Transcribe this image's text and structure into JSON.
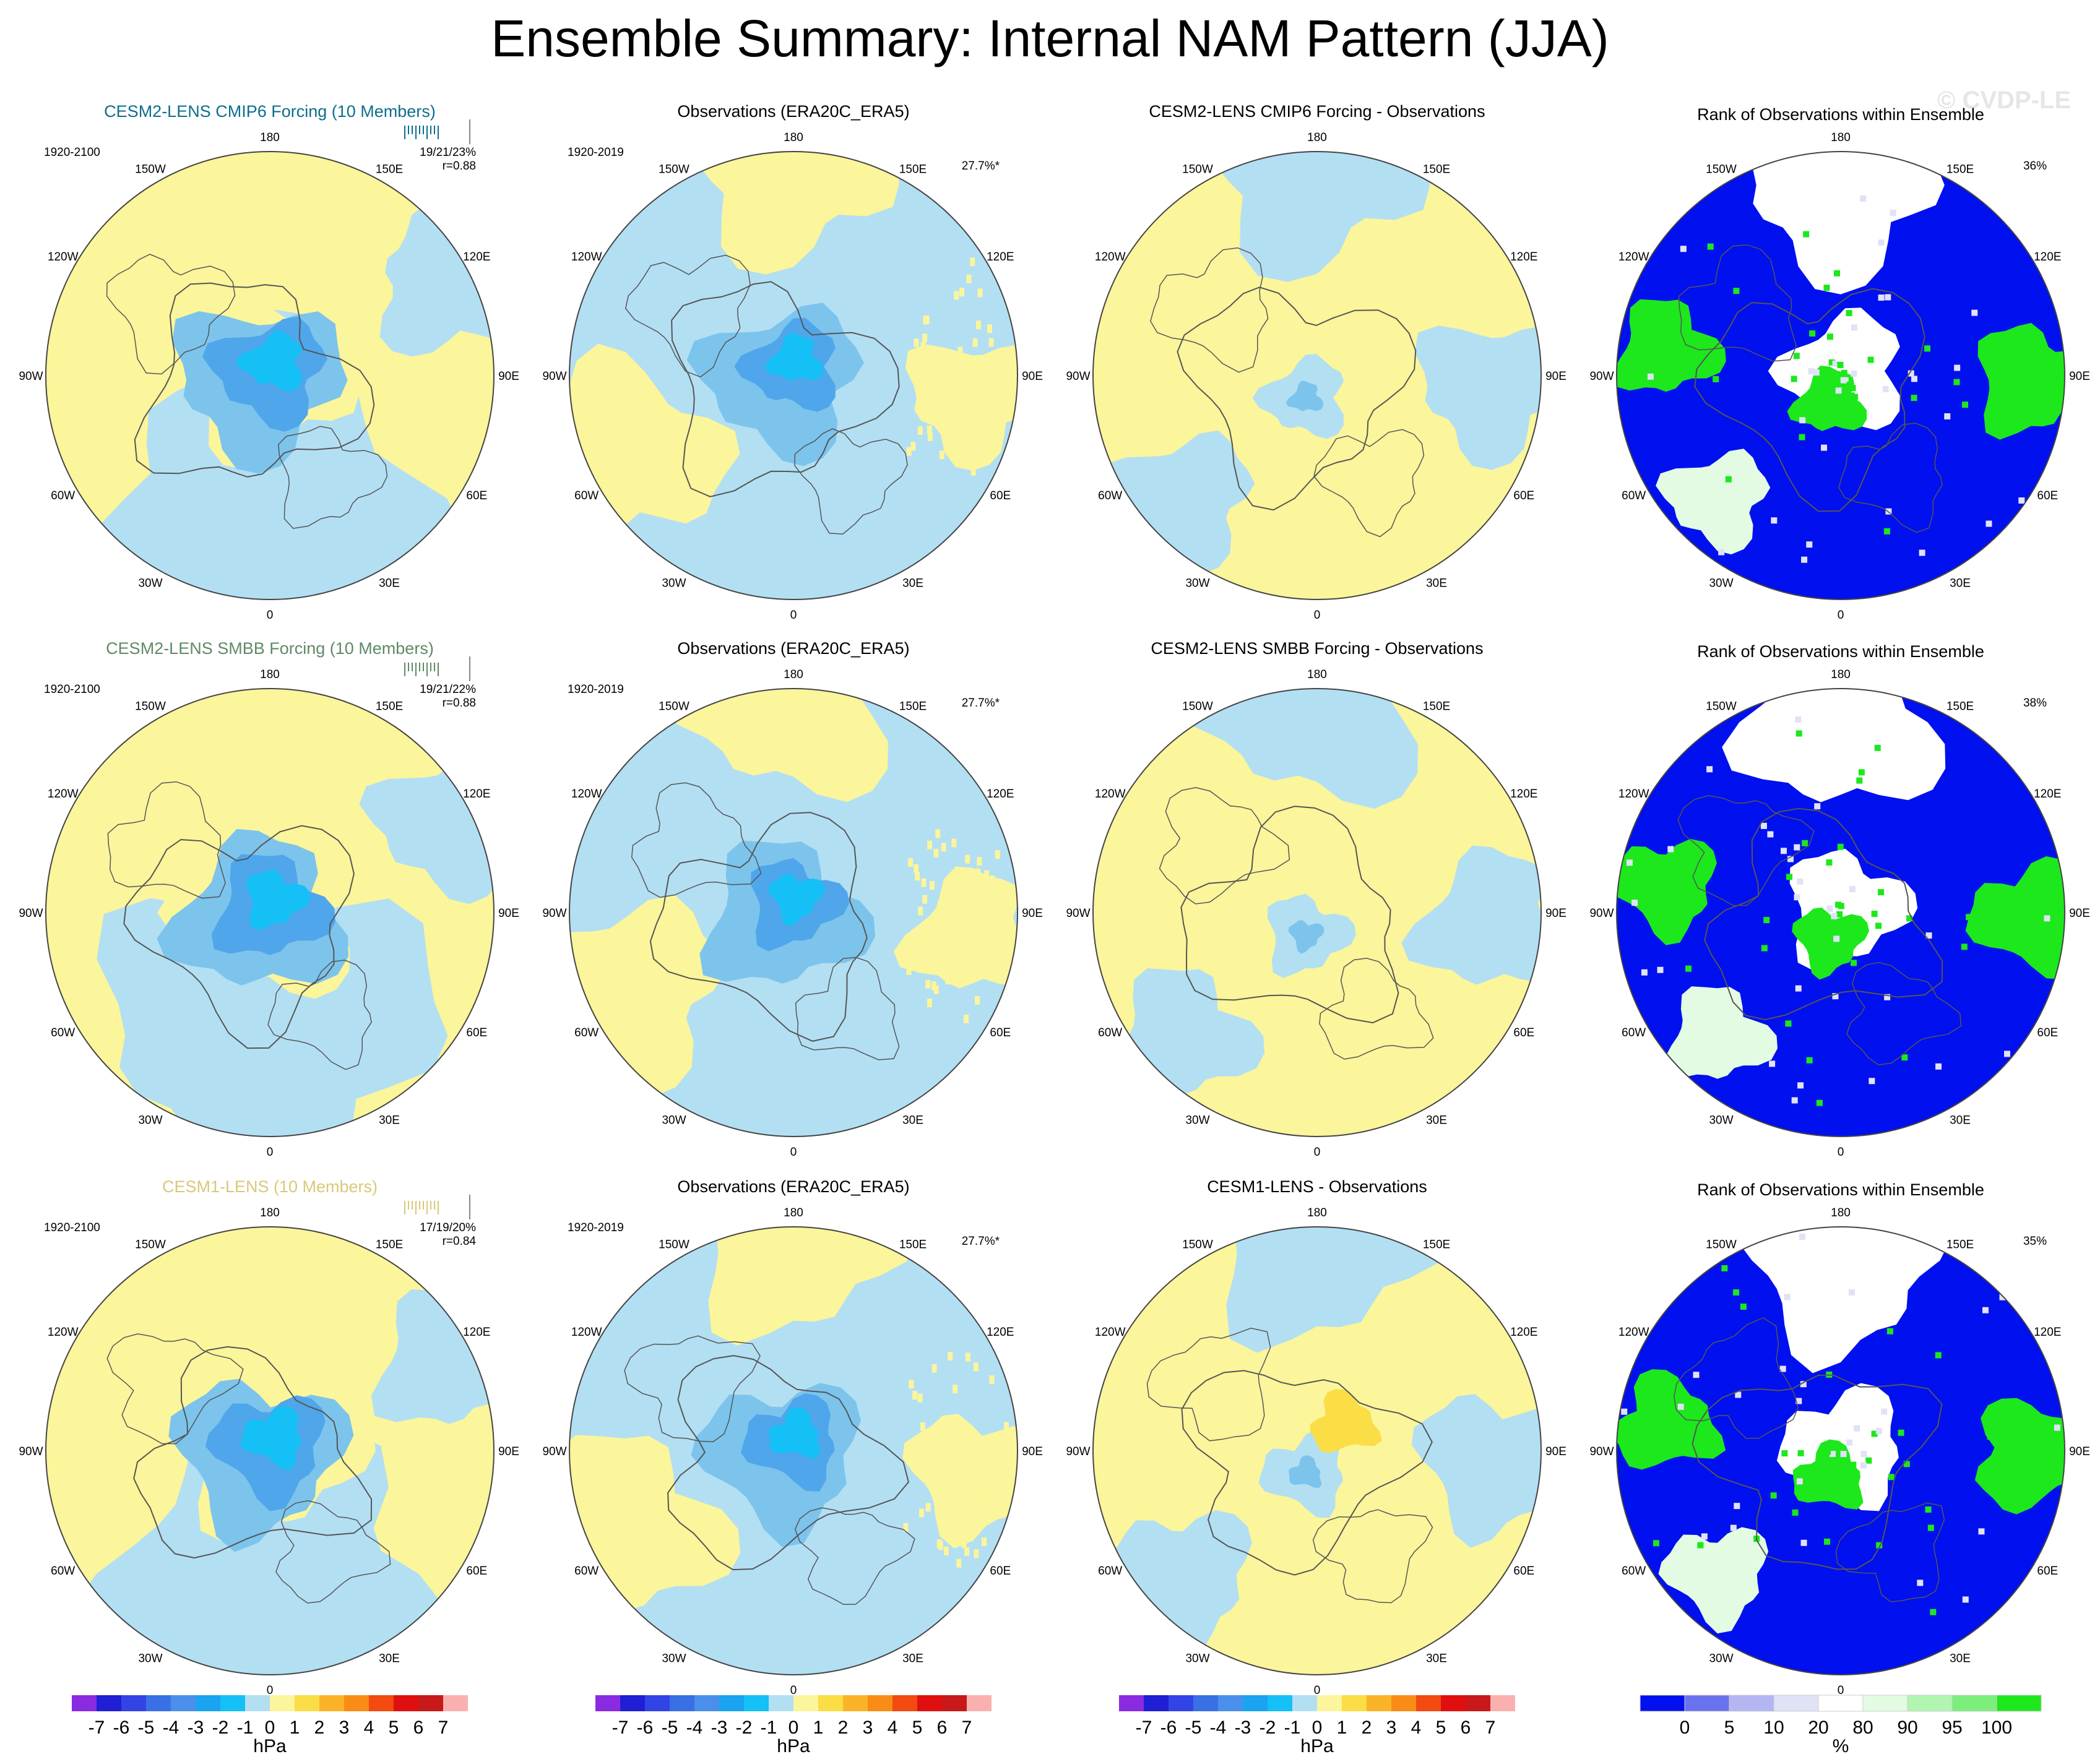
{
  "title": "Ensemble Summary: Internal NAM Pattern (JJA)",
  "watermark": "© CVDP-LE",
  "colors": {
    "land_outline": "#555555",
    "map_labels": "#000000",
    "model_colors": [
      "#0d6e8c",
      "#5f8a66",
      "#d9c87a"
    ]
  },
  "longitude_labels": [
    "180",
    "150E",
    "120E",
    "90E",
    "60E",
    "30E",
    "0",
    "30W",
    "60W",
    "90W",
    "120W",
    "150W"
  ],
  "chart_data": [
    {
      "type": "heatmap",
      "rows": [
        {
          "model_title": "CESM2-LENS CMIP6 Forcing (10 Members)",
          "period": "1920-2100",
          "stats_line": "19/21/23%",
          "corr": "r=0.88",
          "obs_title": "Observations (ERA20C_ERA5)",
          "obs_period": "1920-2019",
          "obs_pct": "27.7%*",
          "diff_title": "CESM2-LENS CMIP6 Forcing - Observations",
          "rank_title": "Rank of Observations within Ensemble",
          "rank_pct": "36%"
        },
        {
          "model_title": "CESM2-LENS SMBB Forcing (10 Members)",
          "period": "1920-2100",
          "stats_line": "19/21/22%",
          "corr": "r=0.88",
          "obs_title": "Observations (ERA20C_ERA5)",
          "obs_period": "1920-2019",
          "obs_pct": "27.7%*",
          "diff_title": "CESM2-LENS SMBB Forcing - Observations",
          "rank_title": "Rank of Observations within Ensemble",
          "rank_pct": "38%"
        },
        {
          "model_title": "CESM1-LENS (10 Members)",
          "period": "1920-2100",
          "stats_line": "17/19/20%",
          "corr": "r=0.84",
          "obs_title": "Observations (ERA20C_ERA5)",
          "obs_period": "1920-2019",
          "obs_pct": "27.7%*",
          "diff_title": "CESM1-LENS - Observations",
          "rank_title": "Rank of Observations within Ensemble",
          "rank_pct": "35%"
        }
      ],
      "hpa_colorbar": {
        "label": "hPa",
        "ticks": [
          "-7",
          "-6",
          "-5",
          "-4",
          "-3",
          "-2",
          "-1",
          "0",
          "1",
          "2",
          "3",
          "4",
          "5",
          "6",
          "7"
        ],
        "colors": [
          "#8a2be2",
          "#1f1fd6",
          "#3344e6",
          "#3a70e6",
          "#4a90ea",
          "#1aa3f0",
          "#14c0f5",
          "#b3dff3",
          "#fbf59b",
          "#fbdd45",
          "#fbb428",
          "#f98c15",
          "#f24a10",
          "#e01010",
          "#c71919",
          "#fbb0b0"
        ]
      },
      "rank_colorbar": {
        "label": "%",
        "ticks": [
          "0",
          "5",
          "10",
          "20",
          "80",
          "90",
          "95",
          "100"
        ],
        "colors": [
          "#0010ee",
          "#6a72ee",
          "#b3b6f2",
          "#e0e2f6",
          "#ffffff",
          "#e2fbe2",
          "#b0f5b0",
          "#7cee7c",
          "#1ce81c"
        ]
      }
    }
  ]
}
